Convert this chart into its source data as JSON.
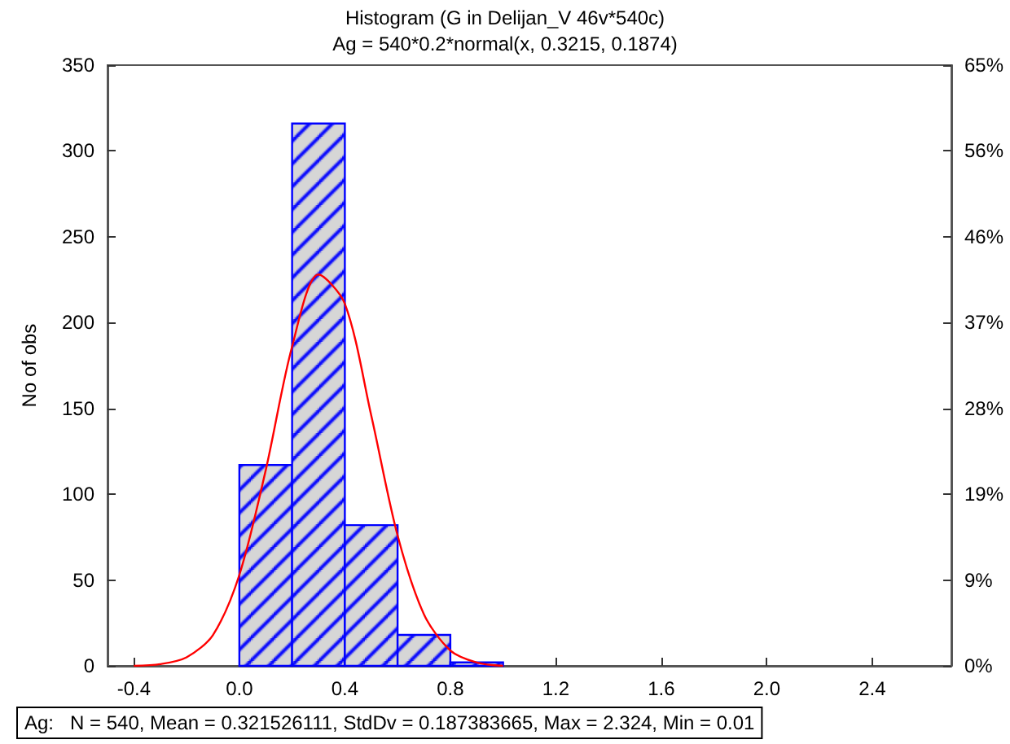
{
  "chart_data": {
    "type": "histogram",
    "title": "Histogram (G in Delijan_V 46v*540c)",
    "subtitle": "Ag = 540*0.2*normal(x, 0.3215, 0.1874)",
    "ylabel": "No of obs",
    "bins": [
      -0.4,
      -0.2,
      0.0,
      0.2,
      0.4,
      0.6,
      0.8,
      1.0,
      1.2,
      1.4,
      1.6,
      1.8,
      2.0,
      2.2,
      2.4,
      2.6
    ],
    "values": [
      0,
      0,
      117,
      316,
      82,
      18,
      2,
      0,
      0,
      0,
      0,
      0,
      0,
      0,
      0
    ],
    "color": "#0000ff",
    "series": [
      {
        "type": "line",
        "color": "#ff0000",
        "x": [
          -0.4,
          -0.3,
          -0.2,
          -0.1,
          0.0,
          0.1,
          0.2,
          0.3,
          0.4,
          0.5,
          0.6,
          0.7,
          0.8,
          0.9,
          1.0
        ],
        "values": [
          0,
          1,
          5,
          18,
          53,
          114,
          186,
          228,
          211,
          146,
          76,
          30,
          9,
          2,
          0
        ]
      }
    ],
    "xlim": [
      -0.5,
      2.7
    ],
    "xticks": [
      {
        "value": -0.4,
        "label": "-0.4"
      },
      {
        "value": 0,
        "label": "0.0"
      },
      {
        "value": 0.4,
        "label": "0.4"
      },
      {
        "value": 0.8,
        "label": "0.8"
      },
      {
        "value": 1.2,
        "label": "1.2"
      },
      {
        "value": 1.6,
        "label": "1.6"
      },
      {
        "value": 2.0,
        "label": "2.0"
      },
      {
        "value": 2.4,
        "label": "2.4"
      }
    ],
    "ylim": [
      0,
      350
    ],
    "yticks": [
      0,
      50,
      100,
      150,
      200,
      250,
      300,
      350
    ],
    "y2lim": [
      0,
      64.815
    ],
    "y2ticks": [
      {
        "value": 0,
        "label": "0%"
      },
      {
        "value": 9.259,
        "label": "9%"
      },
      {
        "value": 18.519,
        "label": "19%"
      },
      {
        "value": 27.778,
        "label": "28%"
      },
      {
        "value": 37.037,
        "label": "37%"
      },
      {
        "value": 46.296,
        "label": "46%"
      },
      {
        "value": 55.556,
        "label": "56%"
      },
      {
        "value": 64.815,
        "label": "65%"
      }
    ],
    "annotations": [
      "Ag:   N = 540, Mean = 0.321526111, StdDv = 0.187383665, Max = 2.324, Min = 0.01"
    ],
    "grid": false,
    "marker": "none",
    "line_style": "solid"
  }
}
